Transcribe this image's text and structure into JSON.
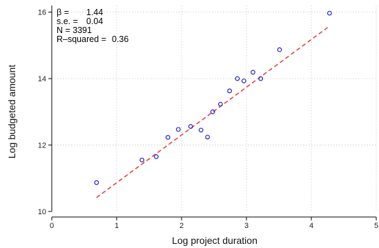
{
  "chart_data": {
    "type": "scatter",
    "xlabel": "Log project duration",
    "ylabel": "Log budgeted amount",
    "xlim": [
      0,
      5
    ],
    "ylim": [
      10,
      16.2
    ],
    "xticks": [
      0,
      1,
      2,
      3,
      4,
      5
    ],
    "xtick_labels": [
      "0",
      "1",
      "2",
      "3",
      "4",
      "5"
    ],
    "yticks": [
      10,
      12,
      14,
      16
    ],
    "ytick_labels": [
      "10",
      "12",
      "14",
      "16"
    ],
    "grid": true,
    "points": [
      {
        "x": 0.69,
        "y": 10.87
      },
      {
        "x": 1.39,
        "y": 11.55
      },
      {
        "x": 1.61,
        "y": 11.65
      },
      {
        "x": 1.79,
        "y": 12.23
      },
      {
        "x": 1.95,
        "y": 12.47
      },
      {
        "x": 2.14,
        "y": 12.56
      },
      {
        "x": 2.3,
        "y": 12.45
      },
      {
        "x": 2.4,
        "y": 12.24
      },
      {
        "x": 2.48,
        "y": 13.0
      },
      {
        "x": 2.6,
        "y": 13.23
      },
      {
        "x": 2.74,
        "y": 13.63
      },
      {
        "x": 2.86,
        "y": 14.0
      },
      {
        "x": 2.96,
        "y": 13.93
      },
      {
        "x": 3.1,
        "y": 14.19
      },
      {
        "x": 3.22,
        "y": 14.0
      },
      {
        "x": 3.51,
        "y": 14.87
      },
      {
        "x": 4.28,
        "y": 15.97
      }
    ],
    "fit_line": {
      "x": [
        0.69,
        4.28
      ],
      "y": [
        10.42,
        15.58
      ],
      "style": "dashed",
      "color": "#e8413c"
    },
    "marker_color": "#2222cc",
    "annotation": {
      "beta_label": "β =",
      "beta_value": "1.44",
      "se_label": "s.e. =",
      "se_value": "0.04",
      "n_text": "N = 3391",
      "r2_label": "R–squared =",
      "r2_value": "0.36"
    }
  }
}
